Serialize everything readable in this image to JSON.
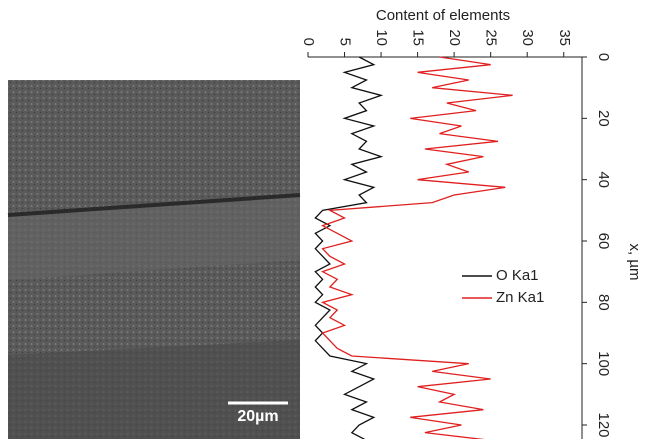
{
  "chart_data": {
    "type": "line",
    "title": "Content of elements",
    "x_label": "x, µm",
    "scale_bar": "20µm",
    "x": [
      0,
      2.5,
      5,
      7.5,
      10,
      12.5,
      15,
      17.5,
      20,
      22.5,
      25,
      27.5,
      30,
      32.5,
      35,
      37.5,
      40,
      42.5,
      45,
      47.5,
      50,
      52.5,
      55,
      57.5,
      60,
      62.5,
      65,
      67.5,
      70,
      72.5,
      75,
      77.5,
      80,
      82.5,
      85,
      87.5,
      90,
      92.5,
      95,
      97.5,
      100,
      102.5,
      105,
      107.5,
      110,
      112.5,
      115,
      117.5,
      120,
      122.5,
      125,
      127.5
    ],
    "series": [
      {
        "name": "O Ka1",
        "color": "#111111",
        "values": [
          7,
          9,
          5,
          8,
          6,
          10,
          7,
          8,
          5,
          9,
          6,
          8,
          7,
          10,
          6,
          8,
          5,
          9,
          7,
          8,
          2,
          1,
          3,
          1,
          2,
          1,
          2,
          3,
          1,
          2,
          1,
          2,
          1,
          3,
          2,
          1,
          2,
          1,
          2,
          3,
          8,
          6,
          9,
          7,
          5,
          8,
          6,
          9,
          7,
          6,
          8,
          7
        ]
      },
      {
        "name": "Zn Ka1",
        "color": "#e02020",
        "values": [
          18,
          25,
          15,
          22,
          17,
          28,
          19,
          23,
          14,
          21,
          18,
          26,
          16,
          24,
          19,
          22,
          15,
          27,
          20,
          17,
          3,
          5,
          2,
          4,
          6,
          2,
          3,
          5,
          2,
          4,
          3,
          6,
          2,
          4,
          3,
          5,
          2,
          3,
          4,
          6,
          22,
          17,
          25,
          15,
          20,
          18,
          24,
          14,
          21,
          16,
          25,
          19
        ]
      }
    ],
    "xlim": [
      0,
      128
    ],
    "xticks": [
      0,
      20,
      40,
      60,
      80,
      100,
      120
    ],
    "ylim": [
      0,
      37.5
    ],
    "yticks": [
      0,
      5,
      10,
      15,
      20,
      25,
      30,
      35
    ]
  }
}
